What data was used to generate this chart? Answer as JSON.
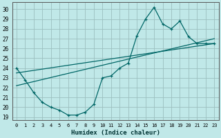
{
  "xlabel": "Humidex (Indice chaleur)",
  "bg_color": "#c0e8e8",
  "grid_color": "#9bbfbf",
  "line_color": "#006666",
  "xlim": [
    -0.5,
    23.5
  ],
  "ylim": [
    18.7,
    30.7
  ],
  "xticks": [
    0,
    1,
    2,
    3,
    4,
    5,
    6,
    7,
    8,
    9,
    10,
    11,
    12,
    13,
    14,
    15,
    16,
    17,
    18,
    19,
    20,
    21,
    22,
    23
  ],
  "yticks": [
    19,
    20,
    21,
    22,
    23,
    24,
    25,
    26,
    27,
    28,
    29,
    30
  ],
  "main_x": [
    0,
    1,
    2,
    3,
    4,
    5,
    6,
    7,
    8,
    9,
    10,
    11,
    12,
    13,
    14,
    15,
    16,
    17,
    18,
    19,
    20,
    21,
    22,
    23
  ],
  "main_y": [
    24.0,
    22.8,
    21.5,
    20.5,
    20.0,
    19.7,
    19.2,
    19.2,
    19.5,
    20.3,
    23.0,
    23.2,
    24.0,
    24.5,
    27.3,
    29.0,
    30.2,
    28.5,
    28.0,
    28.8,
    27.2,
    26.5,
    26.5,
    26.5
  ],
  "trend1_x": [
    0,
    23
  ],
  "trend1_y": [
    22.2,
    27.0
  ],
  "trend2_x": [
    0,
    23
  ],
  "trend2_y": [
    23.5,
    26.5
  ],
  "xlabel_fontsize": 6.5
}
